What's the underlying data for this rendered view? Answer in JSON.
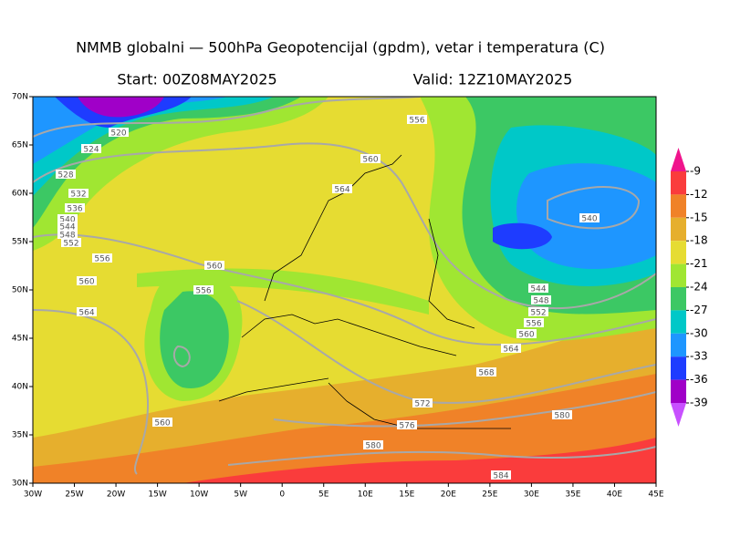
{
  "header": {
    "title": "NMMB globalni — 500hPa Geopotencijal (gpdm), vetar i temperatura (C)",
    "start": "Start: 00Z08MAY2025",
    "valid": "Valid: 12Z10MAY2025"
  },
  "map": {
    "lon_ticks": [
      "30W",
      "25W",
      "20W",
      "15W",
      "10W",
      "5W",
      "0",
      "5E",
      "10E",
      "15E",
      "20E",
      "25E",
      "30E",
      "35E",
      "40E",
      "45E"
    ],
    "lat_ticks": [
      "70N",
      "65N",
      "60N",
      "55N",
      "50N",
      "45N",
      "40N",
      "35N",
      "30N"
    ],
    "contour_labels": [
      "520",
      "524",
      "528",
      "532",
      "536",
      "540",
      "544",
      "548",
      "552",
      "556",
      "560",
      "564",
      "556",
      "560",
      "564",
      "560",
      "556",
      "540",
      "544",
      "548",
      "552",
      "556",
      "560",
      "564",
      "568",
      "572",
      "576",
      "580",
      "580",
      "584",
      "560"
    ]
  },
  "colorbar": {
    "labels": [
      -9,
      -12,
      -15,
      -18,
      -21,
      -24,
      -27,
      -30,
      -33,
      -36,
      -39
    ],
    "colors": [
      "#f0148c",
      "#fa3c3c",
      "#f08228",
      "#e6af2d",
      "#e6dc32",
      "#a0e632",
      "#3cc864",
      "#00c8c8",
      "#1e96ff",
      "#1e3cff",
      "#a000c8",
      "#c850ff"
    ]
  }
}
